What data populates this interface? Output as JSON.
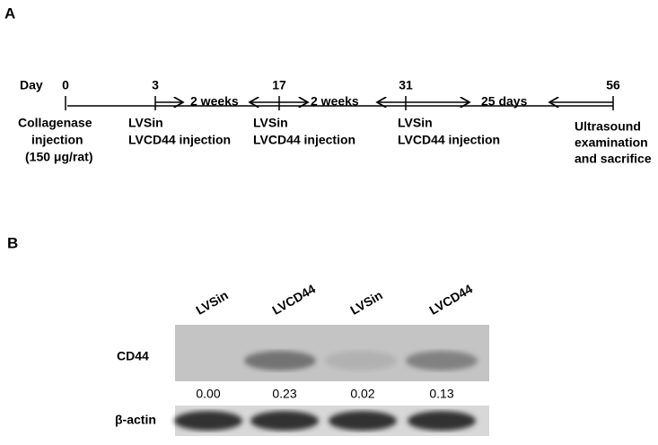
{
  "panel_a": {
    "label": "A",
    "day_label": "Day",
    "days": [
      "0",
      "3",
      "17",
      "31",
      "56"
    ],
    "intervals": [
      "2 weeks",
      "2 weeks",
      "25 days"
    ],
    "events": [
      [
        "Collagenase",
        "injection",
        "(150 μg/rat)"
      ],
      [
        "LVSin",
        "LVCD44 injection"
      ],
      [
        "LVSin",
        "LVCD44 injection"
      ],
      [
        "LVSin",
        "LVCD44 injection"
      ],
      [
        "Ultrasound",
        "examination",
        "and sacrifice"
      ]
    ]
  },
  "panel_b": {
    "label": "B",
    "lanes": [
      "LVSin",
      "LVCD44",
      "LVSin",
      "LVCD44"
    ],
    "rows": [
      "CD44",
      "β-actin"
    ],
    "quantities": [
      "0.00",
      "0.23",
      "0.02",
      "0.13"
    ]
  }
}
